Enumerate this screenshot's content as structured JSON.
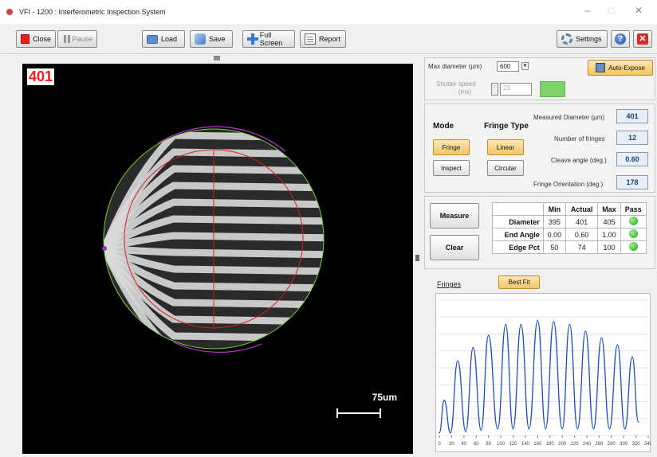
{
  "window": {
    "title": "VFI - 1200 : Interferometric Inspection System"
  },
  "toolbar": {
    "close_label": "Close",
    "pause_label": "Pause",
    "load_label": "Load",
    "save_label": "Save",
    "fullscreen_label": "Full Screen",
    "report_label": "Report",
    "settings_label": "Settings"
  },
  "image": {
    "overlay_value": "401",
    "scale_label": "75um"
  },
  "camera": {
    "max_diameter_label": "Max diameter",
    "max_diameter_unit": "(µm)",
    "max_diameter_value": "600",
    "shutter_label": "Shutter speed",
    "shutter_unit": "(ms)",
    "shutter_value": "23",
    "autoexpose_label": "Auto-Expose",
    "exposure_indicator_color": "#7dd36a"
  },
  "mode": {
    "mode_label": "Mode",
    "fringe_label": "Fringe",
    "inspect_label": "Inspect",
    "fringe_type_label": "Fringe Type",
    "linear_label": "Linear",
    "circular_label": "Circular",
    "selected_mode": "Fringe",
    "selected_fringe_type": "Linear"
  },
  "measurements": {
    "diameter_label": "Measured Diameter (µm)",
    "diameter_value": "401",
    "fringes_label": "Number of fringes",
    "fringes_value": "12",
    "cleave_label": "Cleave angle (deg.)",
    "cleave_value": "0.60",
    "orientation_label": "Fringe Orientation (deg.)",
    "orientation_value": "178"
  },
  "actions": {
    "measure_label": "Measure",
    "clear_label": "Clear"
  },
  "results": {
    "headers": [
      "",
      "Min",
      "Actual",
      "Max",
      "Pass"
    ],
    "rows": [
      {
        "name": "Diameter",
        "min": "395",
        "actual": "401",
        "max": "405",
        "pass": true
      },
      {
        "name": "End Angle",
        "min": "0.00",
        "actual": "0.60",
        "max": "1.00",
        "pass": true
      },
      {
        "name": "Edge Pct",
        "min": "50",
        "actual": "74",
        "max": "100",
        "pass": true
      }
    ]
  },
  "fringes_plot": {
    "title": "Fringes",
    "bestfit_label": "Best Fit"
  },
  "chart_data": {
    "type": "line",
    "title": "Fringes",
    "xlabel": "",
    "ylabel": "",
    "xlim": [
      0,
      340
    ],
    "ylim": [
      0,
      1
    ],
    "x_ticks": [
      0,
      20,
      40,
      60,
      80,
      100,
      120,
      140,
      160,
      180,
      200,
      220,
      240,
      260,
      280,
      300,
      320,
      340
    ],
    "series": [
      {
        "color": "#1f4fc4",
        "peaks": [
          {
            "x": 8,
            "y": 0.26
          },
          {
            "x": 30,
            "y": 0.55
          },
          {
            "x": 55,
            "y": 0.65
          },
          {
            "x": 80,
            "y": 0.74
          },
          {
            "x": 108,
            "y": 0.82
          },
          {
            "x": 133,
            "y": 0.82
          },
          {
            "x": 160,
            "y": 0.85
          },
          {
            "x": 186,
            "y": 0.84
          },
          {
            "x": 212,
            "y": 0.82
          },
          {
            "x": 238,
            "y": 0.77
          },
          {
            "x": 264,
            "y": 0.72
          },
          {
            "x": 290,
            "y": 0.67
          },
          {
            "x": 314,
            "y": 0.58
          }
        ],
        "troughs": [
          {
            "x": 0,
            "y": 0.02
          },
          {
            "x": 18,
            "y": 0.02
          },
          {
            "x": 43,
            "y": 0.03
          },
          {
            "x": 68,
            "y": 0.04
          },
          {
            "x": 95,
            "y": 0.05
          },
          {
            "x": 120,
            "y": 0.05
          },
          {
            "x": 146,
            "y": 0.05
          },
          {
            "x": 173,
            "y": 0.05
          },
          {
            "x": 200,
            "y": 0.05
          },
          {
            "x": 225,
            "y": 0.05
          },
          {
            "x": 251,
            "y": 0.05
          },
          {
            "x": 277,
            "y": 0.05
          },
          {
            "x": 302,
            "y": 0.05
          },
          {
            "x": 324,
            "y": 0.1
          }
        ]
      }
    ],
    "grid": true
  }
}
